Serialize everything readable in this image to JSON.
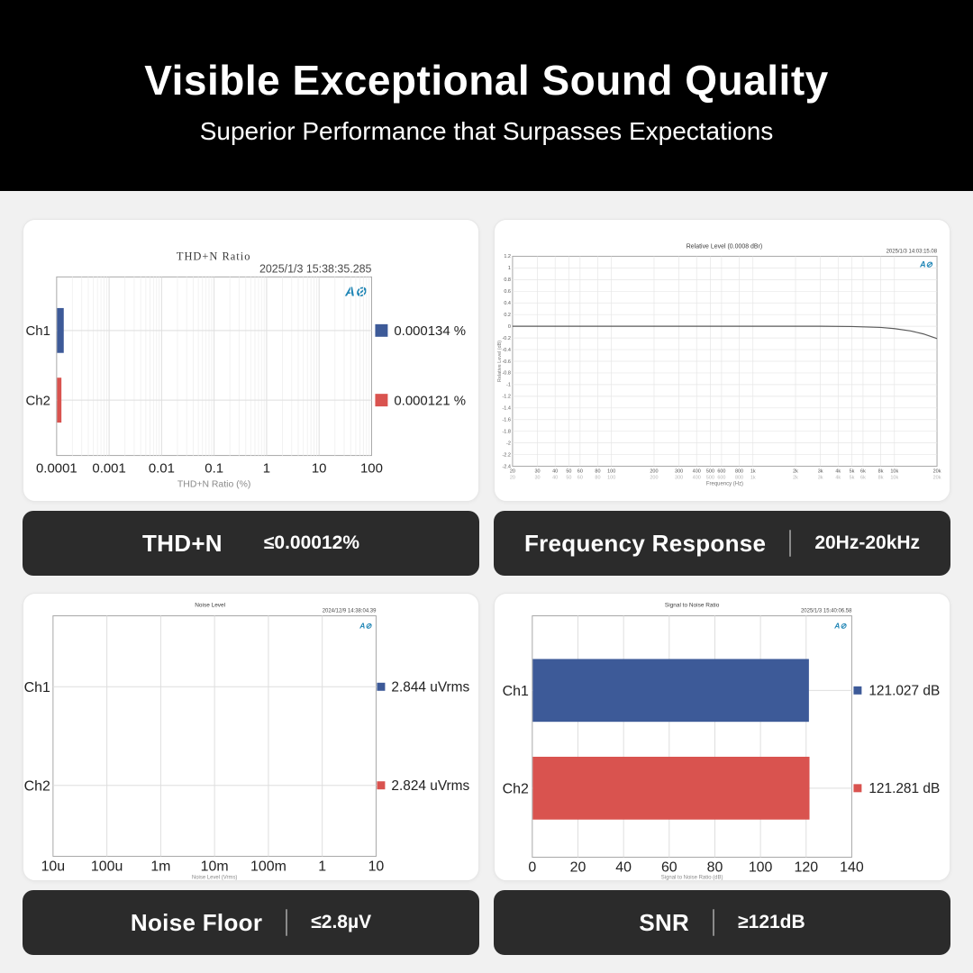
{
  "header": {
    "title": "Visible Exceptional Sound Quality",
    "subtitle": "Superior Performance that Surpasses Expectations"
  },
  "colors": {
    "ch1": "#3D5A98",
    "ch2": "#D9534F",
    "panel_dark": "#2b2b2b",
    "ap_logo": "#1F85B5",
    "line": "#5a5a5a"
  },
  "icons": {
    "ap_logo_glyph": "A⊘"
  },
  "panels": [
    {
      "label": "THD+N",
      "spec": "≤0.00012%",
      "has_separator": false
    },
    {
      "label": "Frequency Response",
      "spec": "20Hz-20kHz",
      "has_separator": true
    },
    {
      "label": "Noise Floor",
      "spec": "≤2.8µV",
      "has_separator": true
    },
    {
      "label": "SNR",
      "spec": "≥121dB",
      "has_separator": true
    }
  ],
  "chart_data": [
    {
      "type": "bar",
      "orientation": "horizontal",
      "title": "THD+N Ratio",
      "timestamp": "2025/1/3 15:38:35.285",
      "categories": [
        "Ch1",
        "Ch2"
      ],
      "values": [
        0.000134,
        0.000121
      ],
      "value_labels": [
        "0.000134 %",
        "0.000121 %"
      ],
      "xlabel": "THD+N Ratio (%)",
      "x_scale": "log",
      "xlim": [
        0.0001,
        100
      ],
      "x_ticks": [
        "0.0001",
        "0.001",
        "0.01",
        "0.1",
        "1",
        "10",
        "100"
      ],
      "x_tick_values": [
        0.0001,
        0.001,
        0.01,
        0.1,
        1,
        10,
        100
      ],
      "grid": "major+minor",
      "legend_position": "right"
    },
    {
      "type": "line",
      "title": "Relative Level (0.0008 dBr)",
      "timestamp": "2025/1/3 14:03:15.08",
      "xlabel": "Frequency (Hz)",
      "ylabel": "Relative Level (dB)",
      "x_scale": "log",
      "xlim": [
        20,
        20000
      ],
      "x_ticks": [
        "20",
        "30",
        "40",
        "50",
        "60",
        "80",
        "100",
        "200",
        "300",
        "400",
        "500",
        "600",
        "800",
        "1k",
        "2k",
        "3k",
        "4k",
        "5k",
        "6k",
        "8k",
        "10k",
        "20k"
      ],
      "x_tick_values": [
        20,
        30,
        40,
        50,
        60,
        80,
        100,
        200,
        300,
        400,
        500,
        600,
        800,
        1000,
        2000,
        3000,
        4000,
        5000,
        6000,
        8000,
        10000,
        20000
      ],
      "ylim": [
        -2.4,
        1.2
      ],
      "y_tick_step": 0.2,
      "grid": "on",
      "points": [
        [
          20,
          0
        ],
        [
          100,
          0
        ],
        [
          1000,
          0
        ],
        [
          3000,
          0
        ],
        [
          5000,
          -0.005
        ],
        [
          8000,
          -0.02
        ],
        [
          10000,
          -0.04
        ],
        [
          13000,
          -0.08
        ],
        [
          16000,
          -0.13
        ],
        [
          20000,
          -0.21
        ]
      ]
    },
    {
      "type": "bar",
      "orientation": "horizontal",
      "title": "Noise Level",
      "timestamp": "2024/12/9 14:38:04.39",
      "categories": [
        "Ch1",
        "Ch2"
      ],
      "values": [
        2.844e-06,
        2.824e-06
      ],
      "value_labels": [
        "2.844 uVrms",
        "2.824 uVrms"
      ],
      "xlabel": "Noise Level (Vrms)",
      "x_scale": "log",
      "xlim": [
        1e-05,
        10
      ],
      "x_ticks": [
        "10u",
        "100u",
        "1m",
        "10m",
        "100m",
        "1",
        "10"
      ],
      "x_tick_values": [
        1e-05,
        0.0001,
        0.001,
        0.01,
        0.1,
        1,
        10
      ],
      "grid": "major",
      "legend_position": "right"
    },
    {
      "type": "bar",
      "orientation": "horizontal",
      "title": "Signal to Noise Ratio",
      "timestamp": "2025/1/3 15:40:06.58",
      "categories": [
        "Ch1",
        "Ch2"
      ],
      "values": [
        121.027,
        121.281
      ],
      "value_labels": [
        "121.027 dB",
        "121.281 dB"
      ],
      "xlabel": "Signal to Noise Ratio (dB)",
      "x_scale": "linear",
      "xlim": [
        0,
        140
      ],
      "x_ticks": [
        "0",
        "20",
        "40",
        "60",
        "80",
        "100",
        "120",
        "140"
      ],
      "x_tick_values": [
        0,
        20,
        40,
        60,
        80,
        100,
        120,
        140
      ],
      "grid": "major",
      "legend_position": "right"
    }
  ]
}
